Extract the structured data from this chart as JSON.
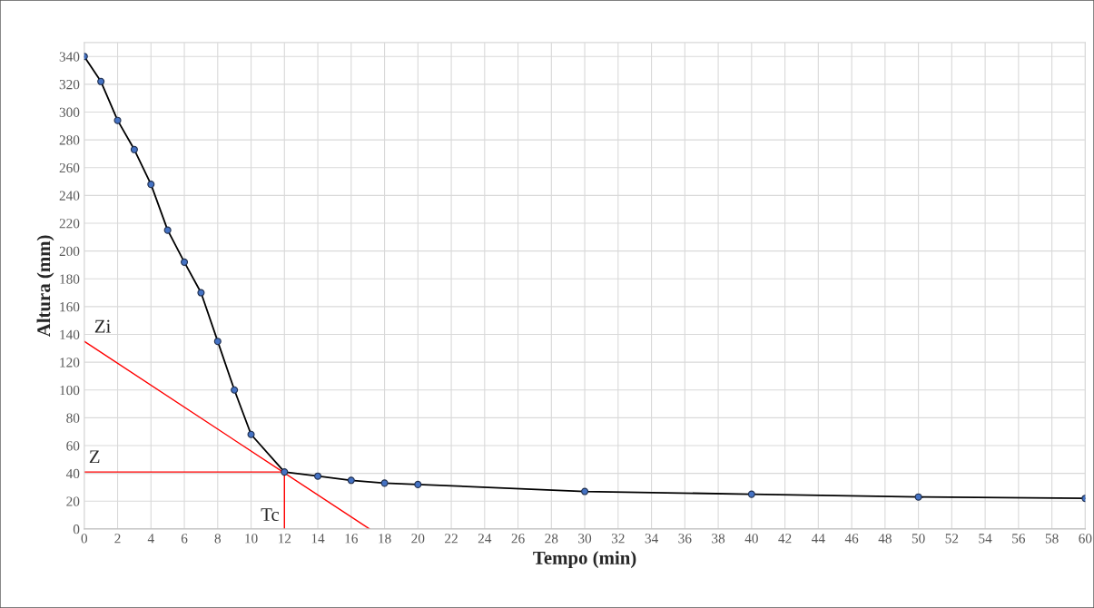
{
  "chart_data": {
    "type": "line",
    "xlabel": "Tempo (min)",
    "ylabel": "Altura (mm)",
    "xlim": [
      0,
      60
    ],
    "ylim": [
      0,
      350
    ],
    "xticks": [
      0,
      2,
      4,
      6,
      8,
      10,
      12,
      14,
      16,
      18,
      20,
      22,
      24,
      26,
      28,
      30,
      32,
      34,
      36,
      38,
      40,
      42,
      44,
      46,
      48,
      50,
      52,
      54,
      56,
      58,
      60
    ],
    "yticks": [
      0,
      20,
      40,
      60,
      80,
      100,
      120,
      140,
      160,
      180,
      200,
      220,
      240,
      260,
      280,
      300,
      320,
      340
    ],
    "grid": true,
    "legend": false,
    "series": [
      {
        "color": "#000000",
        "marker": "circle",
        "line_style": "solid",
        "x": [
          0,
          1,
          2,
          3,
          4,
          5,
          6,
          7,
          8,
          9,
          10,
          12,
          14,
          16,
          18,
          20,
          30,
          40,
          50,
          60
        ],
        "values": [
          340,
          322,
          294,
          273,
          248,
          215,
          192,
          170,
          135,
          100,
          68,
          41,
          38,
          35,
          33,
          32,
          27,
          25,
          23,
          22
        ]
      },
      {
        "type": "line",
        "color": "#ff0000",
        "marker": "none",
        "line_style": "solid",
        "x": [
          0,
          17.1
        ],
        "values": [
          135,
          0
        ]
      },
      {
        "type": "line",
        "color": "#ff0000",
        "marker": "none",
        "line_style": "solid",
        "x": [
          0,
          12
        ],
        "values": [
          41,
          41
        ]
      },
      {
        "type": "line",
        "color": "#ff0000",
        "marker": "none",
        "line_style": "solid",
        "x": [
          12,
          12
        ],
        "values": [
          0,
          41
        ]
      }
    ],
    "annotations": [
      {
        "text": "Zi",
        "x": 0.6,
        "y": 130.3
      },
      {
        "text": "Z",
        "x": 0.5,
        "y": 41
      },
      {
        "text": "Tc",
        "x": 12,
        "y": 3
      }
    ]
  }
}
